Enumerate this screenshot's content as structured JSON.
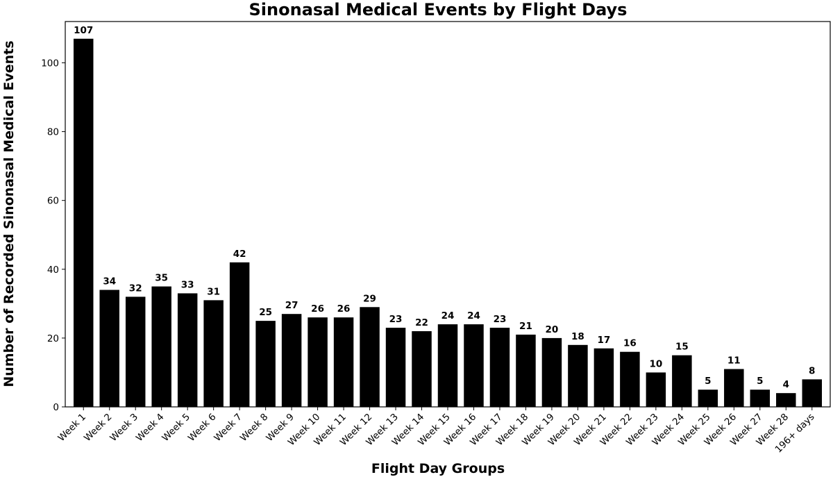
{
  "chart_data": {
    "type": "bar",
    "title": "Sinonasal Medical Events by Flight Days",
    "xlabel": "Flight Day Groups",
    "ylabel": "Number of Recorded Sinonasal Medical Events",
    "categories": [
      "Week 1",
      "Week 2",
      "Week 3",
      "Week 4",
      "Week 5",
      "Week 6",
      "Week 7",
      "Week 8",
      "Week 9",
      "Week 10",
      "Week 11",
      "Week 12",
      "Week 13",
      "Week 14",
      "Week 15",
      "Week 16",
      "Week 17",
      "Week 18",
      "Week 19",
      "Week 20",
      "Week 21",
      "Week 22",
      "Week 23",
      "Week 24",
      "Week 25",
      "Week 26",
      "Week 27",
      "Week 28",
      "196+ days"
    ],
    "values": [
      107,
      34,
      32,
      35,
      33,
      31,
      42,
      25,
      27,
      26,
      26,
      29,
      23,
      22,
      24,
      24,
      23,
      21,
      20,
      18,
      17,
      16,
      10,
      15,
      5,
      11,
      5,
      4,
      8
    ],
    "ylim": [
      0,
      112
    ],
    "yticks": [
      0,
      20,
      40,
      60,
      80,
      100
    ],
    "bar_color": "#000000",
    "grid": false,
    "data_labels": true
  }
}
